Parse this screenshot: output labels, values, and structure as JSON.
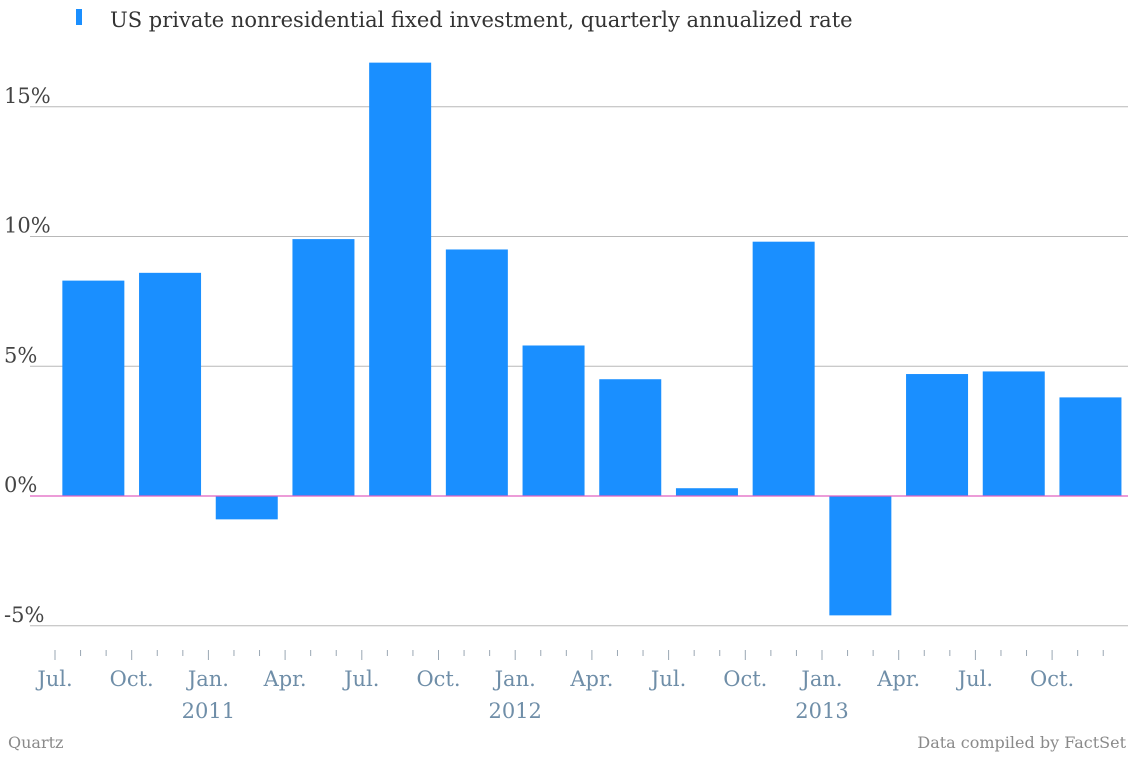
{
  "legend": {
    "label": "US private nonresidential fixed investment, quarterly annualized rate"
  },
  "footer": {
    "source_left": "Quartz",
    "source_right": "Data compiled by FactSet"
  },
  "colors": {
    "bar": "#1a8fff",
    "zero_line": "#e060c0",
    "grid": "#b8b8b8",
    "x_tick_label": "#6f8ea8",
    "y_tick_label": "#444444"
  },
  "chart_data": {
    "type": "bar",
    "title": "",
    "xlabel": "",
    "ylabel": "",
    "ylim": [
      -6,
      17.5
    ],
    "y_ticks": [
      {
        "value": 15,
        "label": "15%"
      },
      {
        "value": 10,
        "label": "10%"
      },
      {
        "value": 5,
        "label": "5%"
      },
      {
        "value": 0,
        "label": "0%"
      },
      {
        "value": -5,
        "label": "-5%"
      }
    ],
    "grid": true,
    "legend_position": "top-left",
    "series": [
      {
        "name": "US private nonresidential fixed investment, quarterly annualized rate",
        "color": "#1a8fff",
        "categories": [
          "Q3 2010",
          "Q4 2010",
          "Q1 2011",
          "Q2 2011",
          "Q3 2011",
          "Q4 2011",
          "Q1 2012",
          "Q2 2012",
          "Q3 2012",
          "Q4 2012",
          "Q1 2013",
          "Q2 2013",
          "Q3 2013",
          "Q4 2013"
        ],
        "values": [
          8.3,
          8.6,
          -0.9,
          9.9,
          16.7,
          9.5,
          5.8,
          4.5,
          0.3,
          9.8,
          -4.6,
          4.7,
          4.8,
          3.8
        ]
      }
    ],
    "x_axis": {
      "month_labels": [
        "Jul.",
        "Oct.",
        "Jan.",
        "Apr.",
        "Jul.",
        "Oct.",
        "Jan.",
        "Apr.",
        "Jul.",
        "Oct.",
        "Jan.",
        "Apr.",
        "Jul.",
        "Oct."
      ],
      "year_labels": [
        {
          "label": "2011",
          "month_index": 2
        },
        {
          "label": "2012",
          "month_index": 6
        },
        {
          "label": "2013",
          "month_index": 10
        }
      ]
    }
  }
}
